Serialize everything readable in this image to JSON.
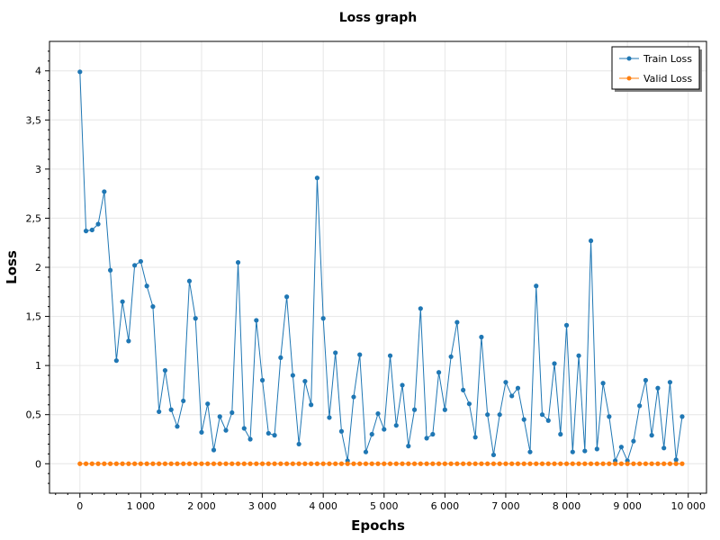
{
  "chart_data": {
    "type": "line",
    "title": "Loss graph",
    "xlabel": "Epochs",
    "ylabel": "Loss",
    "xlim": [
      -500,
      10300
    ],
    "ylim": [
      -0.3,
      4.3
    ],
    "x_ticks": [
      0,
      1000,
      2000,
      3000,
      4000,
      5000,
      6000,
      7000,
      8000,
      9000,
      10000
    ],
    "x_tick_labels": [
      "0",
      "1 000",
      "2 000",
      "3 000",
      "4 000",
      "5 000",
      "6 000",
      "7 000",
      "8 000",
      "9 000",
      "10 000"
    ],
    "y_ticks": [
      0,
      0.5,
      1,
      1.5,
      2,
      2.5,
      3,
      3.5,
      4
    ],
    "y_tick_labels": [
      "0",
      "0,5",
      "1",
      "1,5",
      "2",
      "2,5",
      "3",
      "3,5",
      "4"
    ],
    "grid": true,
    "legend_position": "top-right",
    "x": [
      0,
      100,
      200,
      300,
      400,
      500,
      600,
      700,
      800,
      900,
      1000,
      1100,
      1200,
      1300,
      1400,
      1500,
      1600,
      1700,
      1800,
      1900,
      2000,
      2100,
      2200,
      2300,
      2400,
      2500,
      2600,
      2700,
      2800,
      2900,
      3000,
      3100,
      3200,
      3300,
      3400,
      3500,
      3600,
      3700,
      3800,
      3900,
      4000,
      4100,
      4200,
      4300,
      4400,
      4500,
      4600,
      4700,
      4800,
      4900,
      5000,
      5100,
      5200,
      5300,
      5400,
      5500,
      5600,
      5700,
      5800,
      5900,
      6000,
      6100,
      6200,
      6300,
      6400,
      6500,
      6600,
      6700,
      6800,
      6900,
      7000,
      7100,
      7200,
      7300,
      7400,
      7500,
      7600,
      7700,
      7800,
      7900,
      8000,
      8100,
      8200,
      8300,
      8400,
      8500,
      8600,
      8700,
      8800,
      8900,
      9000,
      9100,
      9200,
      9300,
      9400,
      9500,
      9600,
      9700,
      9800,
      9900
    ],
    "series": [
      {
        "name": "Train Loss",
        "color": "#1f77b4",
        "values": [
          3.99,
          2.37,
          2.38,
          2.44,
          2.77,
          1.97,
          1.05,
          1.65,
          1.25,
          2.02,
          2.06,
          1.81,
          1.6,
          0.53,
          0.95,
          0.55,
          0.38,
          0.64,
          1.86,
          1.48,
          0.32,
          0.61,
          0.14,
          0.48,
          0.34,
          0.52,
          2.05,
          0.36,
          0.25,
          1.46,
          0.85,
          0.31,
          0.29,
          1.08,
          1.7,
          0.9,
          0.2,
          0.84,
          0.6,
          2.91,
          1.48,
          0.47,
          1.13,
          0.33,
          0.03,
          0.68,
          1.11,
          0.12,
          0.3,
          0.51,
          0.35,
          1.1,
          0.39,
          0.8,
          0.18,
          0.55,
          1.58,
          0.26,
          0.3,
          0.93,
          0.55,
          1.09,
          1.44,
          0.75,
          0.61,
          0.27,
          1.29,
          0.5,
          0.09,
          0.5,
          0.83,
          0.69,
          0.77,
          0.45,
          0.12,
          1.81,
          0.5,
          0.44,
          1.02,
          0.3,
          1.41,
          0.12,
          1.1,
          0.13,
          2.27,
          0.15,
          0.82,
          0.48,
          0.03,
          0.17,
          0.03,
          0.23,
          0.59,
          0.85,
          0.29,
          0.77,
          0.16,
          0.83,
          0.04,
          0.48
        ]
      },
      {
        "name": "Valid Loss",
        "color": "#ff7f0e",
        "values": [
          0,
          0,
          0,
          0,
          0,
          0,
          0,
          0,
          0,
          0,
          0,
          0,
          0,
          0,
          0,
          0,
          0,
          0,
          0,
          0,
          0,
          0,
          0,
          0,
          0,
          0,
          0,
          0,
          0,
          0,
          0,
          0,
          0,
          0,
          0,
          0,
          0,
          0,
          0,
          0,
          0,
          0,
          0,
          0,
          0,
          0,
          0,
          0,
          0,
          0,
          0,
          0,
          0,
          0,
          0,
          0,
          0,
          0,
          0,
          0,
          0,
          0,
          0,
          0,
          0,
          0,
          0,
          0,
          0,
          0,
          0,
          0,
          0,
          0,
          0,
          0,
          0,
          0,
          0,
          0,
          0,
          0,
          0,
          0,
          0,
          0,
          0,
          0,
          0,
          0,
          0,
          0,
          0,
          0,
          0,
          0,
          0,
          0,
          0,
          0
        ]
      }
    ]
  }
}
